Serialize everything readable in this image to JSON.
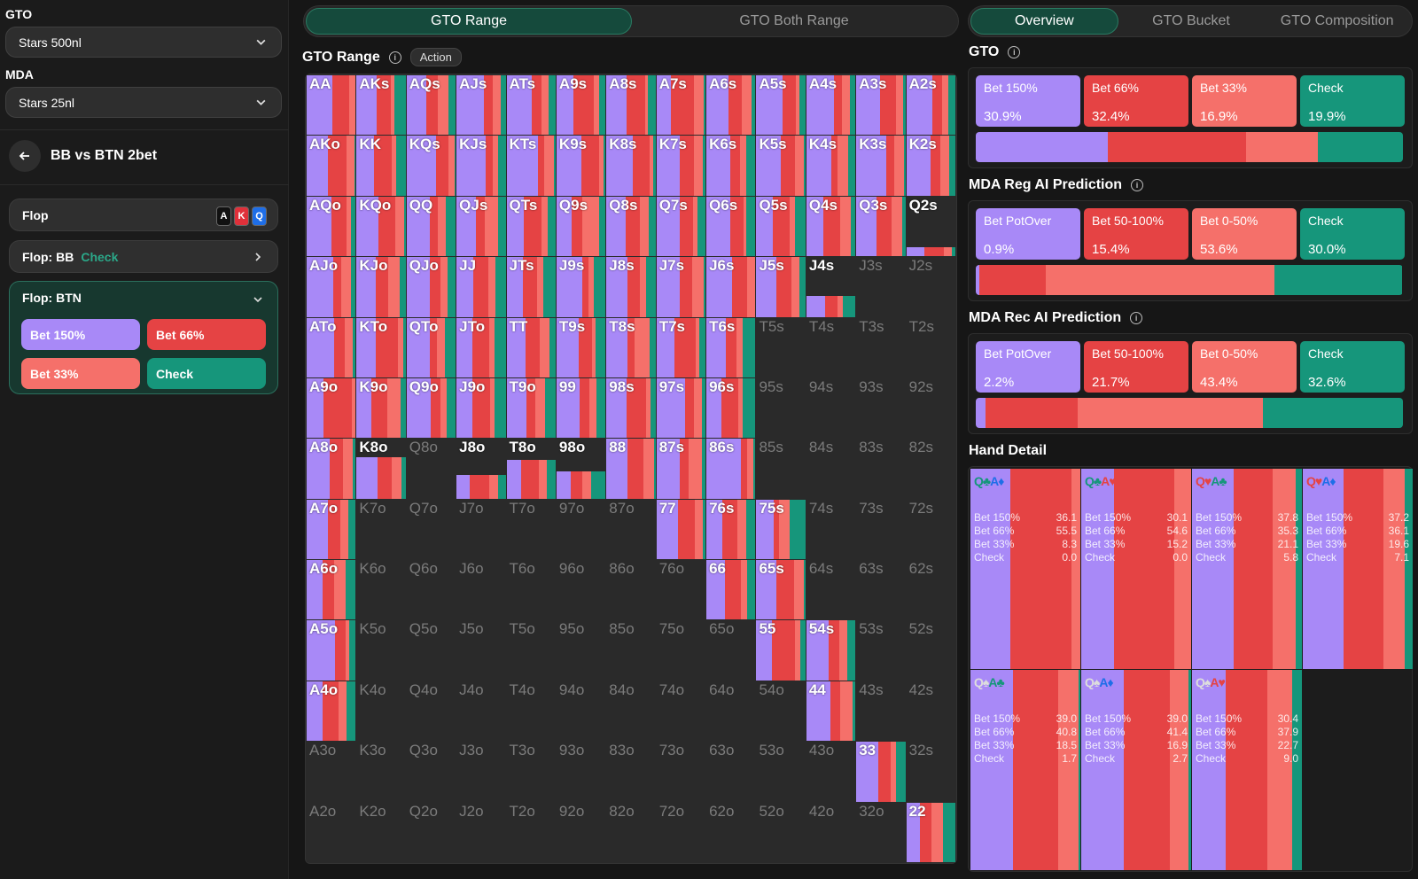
{
  "sidebar": {
    "gto_label": "GTO",
    "gto_value": "Stars 500nl",
    "mda_label": "MDA",
    "mda_value": "Stars 25nl",
    "scenario": "BB vs BTN 2bet",
    "flop_label": "Flop",
    "flop_cards": [
      {
        "rank": "A",
        "color": "#111111"
      },
      {
        "rank": "K",
        "color": "#e0303a"
      },
      {
        "rank": "Q",
        "color": "#1e6ee8"
      }
    ],
    "flop_bb_label": "Flop: BB",
    "flop_bb_action": "Check",
    "flop_btn_label": "Flop: BTN",
    "actions": [
      "Bet 150%",
      "Bet 66%",
      "Bet 33%",
      "Check"
    ]
  },
  "center": {
    "tabs": [
      "GTO Range",
      "GTO Both Range"
    ],
    "section_title": "GTO Range",
    "action_pill": "Action"
  },
  "colors": {
    "bet150": "#a889f7",
    "bet66": "#e54344",
    "bet33": "#f5706a",
    "check": "#16967b",
    "empty": "#2a2a2a"
  },
  "grid": {
    "ranks": [
      "A",
      "K",
      "Q",
      "J",
      "T",
      "9",
      "8",
      "7",
      "6",
      "5",
      "4",
      "3",
      "2"
    ],
    "freq": [
      [
        1,
        1,
        1,
        1,
        1,
        1,
        1,
        1,
        1,
        1,
        1,
        1,
        1
      ],
      [
        1,
        1,
        1,
        1,
        1,
        1,
        1,
        1,
        1,
        1,
        1,
        1,
        1
      ],
      [
        1,
        1,
        1,
        1,
        1,
        1,
        1,
        1,
        1,
        1,
        1,
        1,
        0.15
      ],
      [
        1,
        1,
        1,
        1,
        1,
        1,
        1,
        1,
        1,
        1,
        0.35,
        0,
        0
      ],
      [
        1,
        1,
        1,
        1,
        1,
        1,
        1,
        1,
        1,
        0,
        0,
        0,
        0
      ],
      [
        1,
        1,
        1,
        1,
        1,
        1,
        1,
        1,
        1,
        0,
        0,
        0,
        0
      ],
      [
        1,
        0.7,
        0,
        0.4,
        0.65,
        0.45,
        1,
        1,
        1,
        0,
        0,
        0,
        0
      ],
      [
        1,
        0,
        0,
        0,
        0,
        0,
        0,
        1,
        1,
        1,
        0,
        0,
        0
      ],
      [
        1,
        0,
        0,
        0,
        0,
        0,
        0,
        0,
        1,
        1,
        0,
        0,
        0
      ],
      [
        1,
        0,
        0,
        0,
        0,
        0,
        0,
        0,
        0,
        1,
        1,
        0,
        0
      ],
      [
        1,
        0,
        0,
        0,
        0,
        0,
        0,
        0,
        0,
        0,
        1,
        0,
        0
      ],
      [
        0,
        0,
        0,
        0,
        0,
        0,
        0,
        0,
        0,
        0,
        0,
        1,
        0
      ],
      [
        0,
        0,
        0,
        0,
        0,
        0,
        0,
        0,
        0,
        0,
        0,
        0,
        1
      ]
    ]
  },
  "overview_tabs": [
    "Overview",
    "GTO Bucket",
    "GTO Composition"
  ],
  "gto": {
    "title": "GTO",
    "stats": [
      {
        "name": "Bet 150%",
        "value": "30.9%",
        "pct": 30.9,
        "color": "#a889f7"
      },
      {
        "name": "Bet 66%",
        "value": "32.4%",
        "pct": 32.4,
        "color": "#e54344"
      },
      {
        "name": "Bet 33%",
        "value": "16.9%",
        "pct": 16.9,
        "color": "#f5706a"
      },
      {
        "name": "Check",
        "value": "19.9%",
        "pct": 19.9,
        "color": "#16967b"
      }
    ]
  },
  "mda_reg": {
    "title": "MDA Reg AI Prediction",
    "stats": [
      {
        "name": "Bet PotOver",
        "value": "0.9%",
        "pct": 0.9,
        "color": "#a889f7"
      },
      {
        "name": "Bet 50-100%",
        "value": "15.4%",
        "pct": 15.4,
        "color": "#e54344"
      },
      {
        "name": "Bet 0-50%",
        "value": "53.6%",
        "pct": 53.6,
        "color": "#f5706a"
      },
      {
        "name": "Check",
        "value": "30.0%",
        "pct": 30.0,
        "color": "#16967b"
      }
    ]
  },
  "mda_rec": {
    "title": "MDA Rec AI Prediction",
    "stats": [
      {
        "name": "Bet PotOver",
        "value": "2.2%",
        "pct": 2.2,
        "color": "#a889f7"
      },
      {
        "name": "Bet 50-100%",
        "value": "21.7%",
        "pct": 21.7,
        "color": "#e54344"
      },
      {
        "name": "Bet 0-50%",
        "value": "43.4%",
        "pct": 43.4,
        "color": "#f5706a"
      },
      {
        "name": "Check",
        "value": "32.6%",
        "pct": 32.6,
        "color": "#16967b"
      }
    ]
  },
  "hand_detail": {
    "title": "Hand Detail",
    "labels": [
      "Bet 150%",
      "Bet 66%",
      "Bet 33%",
      "Check"
    ],
    "hands": [
      {
        "c1": "Q♣",
        "c1c": "#16967b",
        "c2": "A♦",
        "c2c": "#1e6ee8",
        "vals": [
          "36.1",
          "55.5",
          "8.3",
          "0.0"
        ],
        "pct": [
          36.1,
          55.5,
          8.3,
          0.0
        ]
      },
      {
        "c1": "Q♣",
        "c1c": "#16967b",
        "c2": "A♥",
        "c2c": "#e54344",
        "vals": [
          "30.1",
          "54.6",
          "15.2",
          "0.0"
        ],
        "pct": [
          30.1,
          54.6,
          15.2,
          0.0
        ]
      },
      {
        "c1": "Q♥",
        "c1c": "#e54344",
        "c2": "A♣",
        "c2c": "#16967b",
        "vals": [
          "37.8",
          "35.3",
          "21.1",
          "5.8"
        ],
        "pct": [
          37.8,
          35.3,
          21.1,
          5.8
        ]
      },
      {
        "c1": "Q♥",
        "c1c": "#e54344",
        "c2": "A♦",
        "c2c": "#1e6ee8",
        "vals": [
          "37.2",
          "36.1",
          "19.6",
          "7.1"
        ],
        "pct": [
          37.2,
          36.1,
          19.6,
          7.1
        ]
      },
      {
        "c1": "Q♠",
        "c1c": "#dddddd",
        "c2": "A♣",
        "c2c": "#16967b",
        "vals": [
          "39.0",
          "40.8",
          "18.5",
          "1.7"
        ],
        "pct": [
          39.0,
          40.8,
          18.5,
          1.7
        ]
      },
      {
        "c1": "Q♠",
        "c1c": "#dddddd",
        "c2": "A♦",
        "c2c": "#1e6ee8",
        "vals": [
          "39.0",
          "41.4",
          "16.9",
          "2.7"
        ],
        "pct": [
          39.0,
          41.4,
          16.9,
          2.7
        ]
      },
      {
        "c1": "Q♠",
        "c1c": "#dddddd",
        "c2": "A♥",
        "c2c": "#e54344",
        "vals": [
          "30.4",
          "37.9",
          "22.7",
          "9.0"
        ],
        "pct": [
          30.4,
          37.9,
          22.7,
          9.0
        ]
      }
    ]
  }
}
